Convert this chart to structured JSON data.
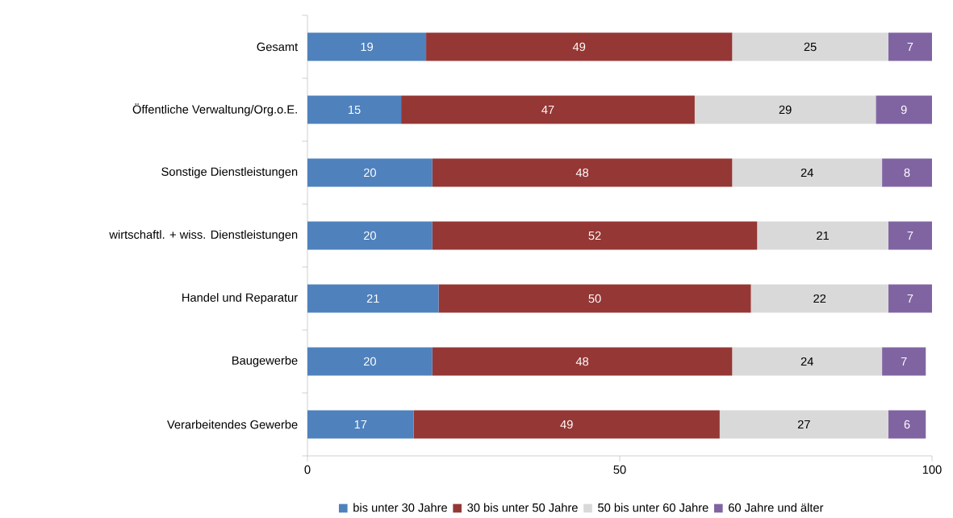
{
  "chart_data": {
    "type": "bar",
    "orientation": "horizontal",
    "stacked": true,
    "data_labels": true,
    "legend": "bottom",
    "categories": [
      "Gesamt",
      "Öffentliche Verwaltung/Org.o.E.",
      "Sonstige Dienstleistungen",
      "wirtschaftl. + wiss. Dienstleistungen",
      "Handel und Reparatur",
      "Baugewerbe",
      "Verarbeitendes Gewerbe"
    ],
    "series": [
      {
        "name": "bis unter 30 Jahre",
        "color": "#4f81bd",
        "values": [
          19,
          15,
          20,
          20,
          21,
          20,
          17
        ]
      },
      {
        "name": "30 bis unter 50 Jahre",
        "color": "#953735",
        "values": [
          49,
          47,
          48,
          52,
          50,
          48,
          49
        ]
      },
      {
        "name": "50 bis unter 60 Jahre",
        "color": "#d9d9d9",
        "values": [
          25,
          29,
          24,
          21,
          22,
          24,
          27
        ]
      },
      {
        "name": "60 Jahre und älter",
        "color": "#8064a2",
        "values": [
          7,
          9,
          8,
          7,
          7,
          7,
          6
        ]
      }
    ],
    "xlim": [
      0,
      100
    ],
    "xticks": [
      0,
      50,
      100
    ]
  }
}
